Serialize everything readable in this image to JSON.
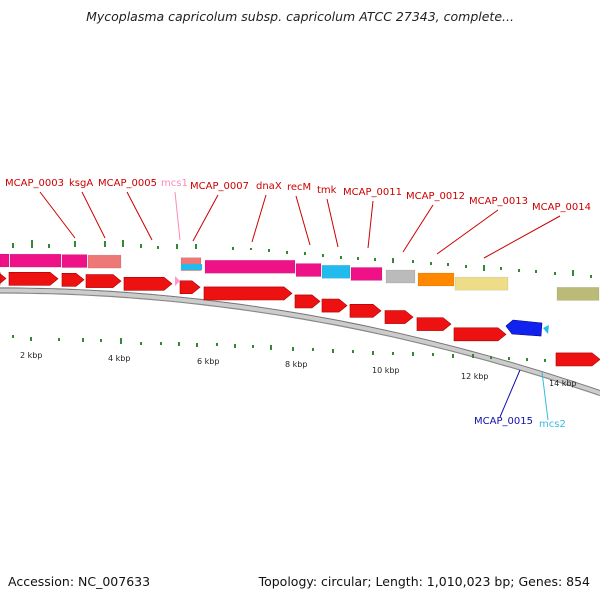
{
  "title": "Mycoplasma capricolum subsp. capricolum ATCC 27343, complete...",
  "footer": {
    "accession": "Accession: NC_007633",
    "summary": "Topology: circular; Length: 1,010,023 bp; Genes: 854"
  },
  "scale_labels": [
    "2 kbp",
    "4 kbp",
    "6 kbp",
    "8 kbp",
    "10 kbp",
    "12 kbp",
    "14 kbp"
  ],
  "gene_labels": [
    {
      "text": "MCAP_0003",
      "color": "#cc0000"
    },
    {
      "text": "ksgA",
      "color": "#cc0000"
    },
    {
      "text": "MCAP_0005",
      "color": "#cc0000"
    },
    {
      "text": "mcs1",
      "color": "#ff88bb"
    },
    {
      "text": "MCAP_0007",
      "color": "#cc0000"
    },
    {
      "text": "dnaX",
      "color": "#cc0000"
    },
    {
      "text": "recM",
      "color": "#cc0000"
    },
    {
      "text": "tmk",
      "color": "#cc0000"
    },
    {
      "text": "MCAP_0011",
      "color": "#cc0000"
    },
    {
      "text": "MCAP_0012",
      "color": "#cc0000"
    },
    {
      "text": "MCAP_0013",
      "color": "#cc0000"
    },
    {
      "text": "MCAP_0014",
      "color": "#cc0000"
    },
    {
      "text": "MCAP_0015",
      "color": "#1111aa"
    },
    {
      "text": "mcs2",
      "color": "#33bbdd"
    }
  ],
  "colors": {
    "cds": "#ee1111",
    "magenta": "#ee1188",
    "salmon": "#ee7777",
    "cyan": "#22bbee",
    "gray": "#bbbbbb",
    "orange": "#ff8800",
    "yellow": "#eedd88",
    "olive": "#bbbb77",
    "reverse_cds": "#1122ee",
    "backbone": "#aaaaaa",
    "gc_ticks": "#338833"
  }
}
